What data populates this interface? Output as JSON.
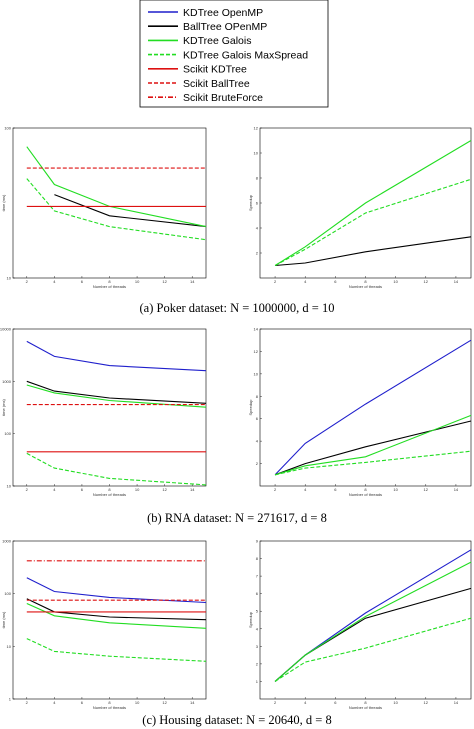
{
  "series_styles": [
    {
      "name": "KDTree OpenMP",
      "color": "#1f1fcc",
      "dash": ""
    },
    {
      "name": "BallTree OPenMP",
      "color": "#000000",
      "dash": ""
    },
    {
      "name": "KDTree Galois",
      "color": "#22dd22",
      "dash": ""
    },
    {
      "name": "KDTree Galois MaxSpread",
      "color": "#22dd22",
      "dash": "4,2"
    },
    {
      "name": "Scikit KDTree",
      "color": "#dd1111",
      "dash": ""
    },
    {
      "name": "Scikit BallTree",
      "color": "#dd1111",
      "dash": "4,2"
    },
    {
      "name": "Scikit BruteForce",
      "color": "#dd1111",
      "dash": "5,2,1,2"
    }
  ],
  "chart_data": [
    {
      "type": "line",
      "id": "poker-time",
      "panel": "Poker dataset, time",
      "xlabel": "Number of threads",
      "ylabel": "time (ms)",
      "yscale": "log",
      "xlim": [
        1,
        15
      ],
      "ylim": [
        10,
        100
      ],
      "xticks": [
        "2",
        "4",
        "6",
        "8",
        "10",
        "12",
        "14"
      ],
      "yticks": [
        "10",
        "100"
      ],
      "x": [
        2,
        4,
        8,
        15
      ],
      "series": [
        {
          "name": "BallTree OPenMP",
          "values": [
            null,
            36,
            26,
            22
          ]
        },
        {
          "name": "KDTree Galois",
          "values": [
            75,
            42,
            30,
            22
          ]
        },
        {
          "name": "KDTree Galois MaxSpread",
          "values": [
            46,
            28,
            22,
            18
          ]
        },
        {
          "name": "Scikit KDTree",
          "values": [
            30,
            30,
            30,
            30
          ]
        },
        {
          "name": "Scikit BallTree",
          "values": [
            54,
            54,
            54,
            54
          ]
        }
      ]
    },
    {
      "type": "line",
      "id": "poker-speedup",
      "panel": "Poker dataset, speedup",
      "xlabel": "Number of threads",
      "ylabel": "Speedup",
      "xlim": [
        1,
        15
      ],
      "ylim": [
        0,
        12
      ],
      "xticks": [
        "2",
        "4",
        "6",
        "8",
        "10",
        "12",
        "14"
      ],
      "yticks": [
        "2",
        "4",
        "6",
        "8",
        "10",
        "12"
      ],
      "x": [
        2,
        4,
        8,
        15
      ],
      "series": [
        {
          "name": "BallTree OPenMP",
          "values": [
            1,
            1.2,
            2.1,
            3.3
          ]
        },
        {
          "name": "KDTree Galois",
          "values": [
            1,
            2.5,
            6,
            11
          ]
        },
        {
          "name": "KDTree Galois MaxSpread",
          "values": [
            1,
            2.3,
            5.2,
            7.9
          ]
        }
      ]
    },
    {
      "type": "line",
      "id": "rna-time",
      "panel": "RNA dataset, time",
      "xlabel": "Number of threads",
      "ylabel": "time (ms)",
      "yscale": "log",
      "xlim": [
        1,
        15
      ],
      "ylim": [
        10,
        10000
      ],
      "xticks": [
        "2",
        "4",
        "6",
        "8",
        "10",
        "12",
        "14"
      ],
      "yticks": [
        "10",
        "100",
        "1000",
        "10000"
      ],
      "x": [
        2,
        4,
        8,
        15
      ],
      "series": [
        {
          "name": "KDTree OpenMP",
          "values": [
            5800,
            3000,
            2000,
            1600
          ]
        },
        {
          "name": "BallTree OPenMP",
          "values": [
            1000,
            650,
            480,
            380
          ]
        },
        {
          "name": "KDTree Galois",
          "values": [
            850,
            600,
            430,
            320
          ]
        },
        {
          "name": "KDTree Galois MaxSpread",
          "values": [
            42,
            22,
            14,
            10.5
          ]
        },
        {
          "name": "Scikit KDTree",
          "values": [
            45,
            45,
            45,
            45
          ]
        },
        {
          "name": "Scikit BallTree",
          "values": [
            360,
            360,
            360,
            360
          ]
        }
      ]
    },
    {
      "type": "line",
      "id": "rna-speedup",
      "panel": "RNA dataset, speedup",
      "xlabel": "Number of threads",
      "ylabel": "Speedup",
      "xlim": [
        1,
        15
      ],
      "ylim": [
        0,
        14
      ],
      "xticks": [
        "2",
        "4",
        "6",
        "8",
        "10",
        "12",
        "14"
      ],
      "yticks": [
        "2",
        "4",
        "6",
        "8",
        "10",
        "12",
        "14"
      ],
      "x": [
        2,
        4,
        8,
        15
      ],
      "series": [
        {
          "name": "KDTree OpenMP",
          "values": [
            1,
            3.8,
            7.3,
            13
          ]
        },
        {
          "name": "BallTree OPenMP",
          "values": [
            1,
            2,
            3.5,
            5.8
          ]
        },
        {
          "name": "KDTree Galois",
          "values": [
            1,
            1.8,
            2.6,
            6.3
          ]
        },
        {
          "name": "KDTree Galois MaxSpread",
          "values": [
            1,
            1.6,
            2.1,
            3.1
          ]
        }
      ]
    },
    {
      "type": "line",
      "id": "housing-time",
      "panel": "Housing dataset, time",
      "xlabel": "Number of threads",
      "ylabel": "time (ms)",
      "yscale": "log",
      "xlim": [
        1,
        15
      ],
      "ylim": [
        1,
        1000
      ],
      "xticks": [
        "2",
        "4",
        "6",
        "8",
        "10",
        "12",
        "14"
      ],
      "yticks": [
        "1",
        "10",
        "100",
        "1000"
      ],
      "x": [
        2,
        4,
        8,
        15
      ],
      "series": [
        {
          "name": "KDTree OpenMP",
          "values": [
            200,
            110,
            85,
            68
          ]
        },
        {
          "name": "BallTree OPenMP",
          "values": [
            80,
            45,
            36,
            32
          ]
        },
        {
          "name": "KDTree Galois",
          "values": [
            65,
            38,
            28,
            22
          ]
        },
        {
          "name": "KDTree Galois MaxSpread",
          "values": [
            14,
            8,
            6.5,
            5.2
          ]
        },
        {
          "name": "Scikit KDTree",
          "values": [
            45,
            45,
            45,
            45
          ]
        },
        {
          "name": "Scikit BallTree",
          "values": [
            75,
            75,
            75,
            75
          ]
        },
        {
          "name": "Scikit BruteForce",
          "values": [
            420,
            420,
            420,
            420
          ]
        }
      ]
    },
    {
      "type": "line",
      "id": "housing-speedup",
      "panel": "Housing dataset, speedup",
      "xlabel": "Number of threads",
      "ylabel": "Speedup",
      "xlim": [
        1,
        15
      ],
      "ylim": [
        0,
        9
      ],
      "xticks": [
        "2",
        "4",
        "6",
        "8",
        "10",
        "12",
        "14"
      ],
      "yticks": [
        "1",
        "2",
        "3",
        "4",
        "5",
        "6",
        "7",
        "8",
        "9"
      ],
      "x": [
        2,
        4,
        8,
        15
      ],
      "series": [
        {
          "name": "KDTree OpenMP",
          "values": [
            1,
            2.5,
            4.9,
            8.5
          ]
        },
        {
          "name": "BallTree OPenMP",
          "values": [
            1,
            2.5,
            4.6,
            6.3
          ]
        },
        {
          "name": "KDTree Galois",
          "values": [
            1,
            2.5,
            4.7,
            7.8
          ]
        },
        {
          "name": "KDTree Galois MaxSpread",
          "values": [
            1,
            2.1,
            2.9,
            4.6
          ]
        }
      ]
    }
  ],
  "captions": [
    "(a) Poker dataset: N = 1000000, d = 10",
    "(b) RNA dataset: N = 271617, d = 8",
    "(c) Housing dataset: N = 20640, d = 8"
  ]
}
